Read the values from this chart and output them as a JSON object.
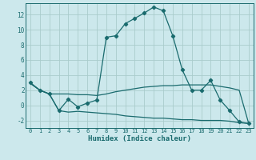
{
  "xlabel": "Humidex (Indice chaleur)",
  "bg_color": "#cce8ec",
  "grid_color": "#aacccc",
  "line_color": "#1a6b6e",
  "xlim": [
    -0.5,
    23.5
  ],
  "ylim": [
    -3.0,
    13.5
  ],
  "yticks": [
    -2,
    0,
    2,
    4,
    6,
    8,
    10,
    12
  ],
  "xticks": [
    0,
    1,
    2,
    3,
    4,
    5,
    6,
    7,
    8,
    9,
    10,
    11,
    12,
    13,
    14,
    15,
    16,
    17,
    18,
    19,
    20,
    21,
    22,
    23
  ],
  "line1_x": [
    0,
    1,
    2,
    3,
    4,
    5,
    6,
    7,
    8,
    9,
    10,
    11,
    12,
    13,
    14,
    15,
    16,
    17,
    18,
    19,
    20,
    21,
    22,
    23
  ],
  "line1_y": [
    3.0,
    2.0,
    1.5,
    -0.7,
    0.8,
    -0.2,
    0.3,
    0.7,
    9.0,
    9.2,
    10.8,
    11.5,
    12.2,
    13.0,
    12.5,
    9.2,
    4.7,
    2.0,
    2.0,
    3.3,
    0.7,
    -0.7,
    -2.2,
    -2.4
  ],
  "line2_x": [
    0,
    1,
    2,
    3,
    4,
    5,
    6,
    7,
    8,
    9,
    10,
    11,
    12,
    13,
    14,
    15,
    16,
    17,
    18,
    19,
    20,
    21,
    22,
    23
  ],
  "line2_y": [
    2.9,
    2.0,
    1.5,
    1.5,
    1.5,
    1.4,
    1.4,
    1.3,
    1.5,
    1.8,
    2.0,
    2.2,
    2.4,
    2.5,
    2.6,
    2.6,
    2.7,
    2.7,
    2.7,
    2.7,
    2.5,
    2.3,
    2.0,
    -2.4
  ],
  "line3_x": [
    0,
    1,
    2,
    3,
    4,
    5,
    6,
    7,
    8,
    9,
    10,
    11,
    12,
    13,
    14,
    15,
    16,
    17,
    18,
    19,
    20,
    21,
    22,
    23
  ],
  "line3_y": [
    2.9,
    2.0,
    1.5,
    -0.7,
    -0.9,
    -0.8,
    -0.9,
    -1.0,
    -1.1,
    -1.2,
    -1.4,
    -1.5,
    -1.6,
    -1.7,
    -1.7,
    -1.8,
    -1.9,
    -1.9,
    -2.0,
    -2.0,
    -2.0,
    -2.1,
    -2.3,
    -2.4
  ]
}
